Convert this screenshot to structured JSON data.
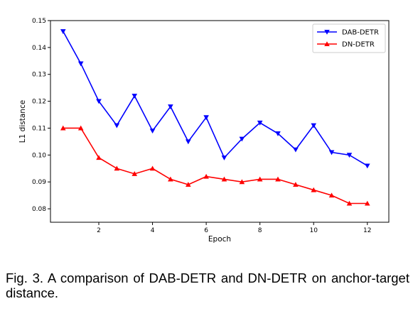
{
  "chart_data": {
    "type": "line",
    "title": "",
    "xlabel": "Epoch",
    "ylabel": "L1 distance",
    "xlim": [
      0.2,
      12.8
    ],
    "ylim": [
      0.075,
      0.15
    ],
    "xticks": [
      "2",
      "4",
      "6",
      "8",
      "10",
      "12"
    ],
    "xtick_values": [
      2,
      4,
      6,
      8,
      10,
      12
    ],
    "yticks": [
      "0.08",
      "0.09",
      "0.10",
      "0.11",
      "0.12",
      "0.13",
      "0.14",
      "0.15"
    ],
    "ytick_values": [
      0.08,
      0.09,
      0.1,
      0.11,
      0.12,
      0.13,
      0.14,
      0.15
    ],
    "legend_position": "top-right",
    "grid": false,
    "x": [
      0.67,
      1.33,
      2.0,
      2.67,
      3.33,
      4.0,
      4.67,
      5.33,
      6.0,
      6.67,
      7.33,
      8.0,
      8.67,
      9.33,
      10.0,
      10.67,
      11.33,
      12.0
    ],
    "series": [
      {
        "name": "DAB-DETR",
        "color": "#0000ff",
        "marker": "triangle-down",
        "values": [
          0.146,
          0.134,
          0.12,
          0.111,
          0.122,
          0.109,
          0.118,
          0.105,
          0.114,
          0.099,
          0.106,
          0.112,
          0.108,
          0.102,
          0.111,
          0.101,
          0.1,
          0.096
        ]
      },
      {
        "name": "DN-DETR",
        "color": "#ff0000",
        "marker": "triangle-up",
        "values": [
          0.11,
          0.11,
          0.099,
          0.095,
          0.093,
          0.095,
          0.091,
          0.089,
          0.092,
          0.091,
          0.09,
          0.091,
          0.091,
          0.089,
          0.087,
          0.085,
          0.082,
          0.082
        ]
      }
    ]
  },
  "caption": "Fig. 3. A comparison of DAB-DETR and DN-DETR on anchor-target distance."
}
